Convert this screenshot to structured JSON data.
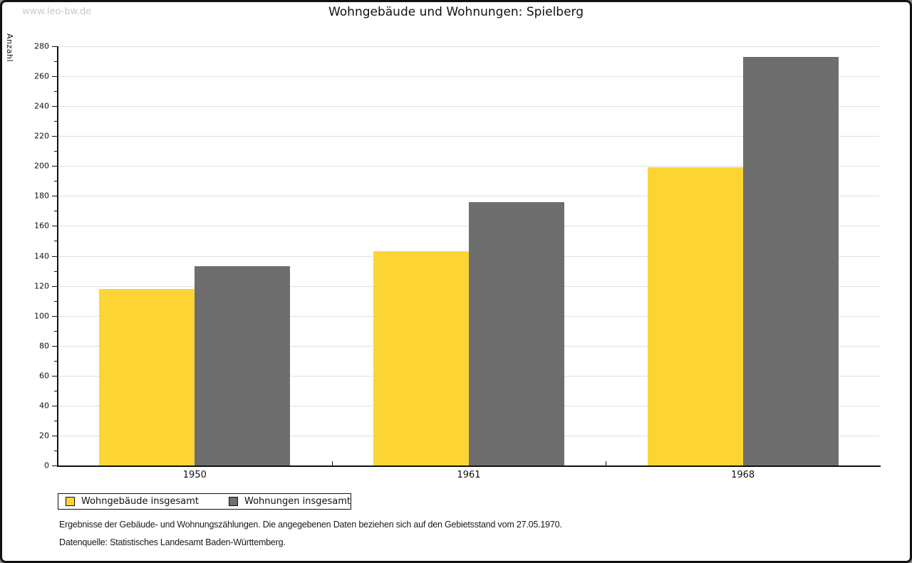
{
  "watermark": "www.leo-bw.de",
  "title": "Wohngebäude und Wohnungen: Spielberg",
  "chart_data": {
    "type": "bar",
    "title": "Wohngebäude und Wohnungen: Spielberg",
    "xlabel": "",
    "ylabel": "Anzahl",
    "categories": [
      "1950",
      "1961",
      "1968"
    ],
    "series": [
      {
        "name": "Wohngebäude insgesamt",
        "color": "#FCD535",
        "values": [
          118,
          143,
          199
        ]
      },
      {
        "name": "Wohnungen insgesamt",
        "color": "#6E6E6E",
        "values": [
          133,
          176,
          273
        ]
      }
    ],
    "ylim": [
      0,
      280
    ],
    "ytick_step": 20,
    "ytick_minor_step": 10,
    "grid": true,
    "legend_position": "bottom-left"
  },
  "footer": {
    "line1": "Ergebnisse der Gebäude- und Wohnungszählungen. Die angegebenen Daten beziehen sich auf den Gebietsstand vom 27.05.1970.",
    "line2": "Datenquelle: Statistisches Landesamt Baden-Württemberg."
  }
}
